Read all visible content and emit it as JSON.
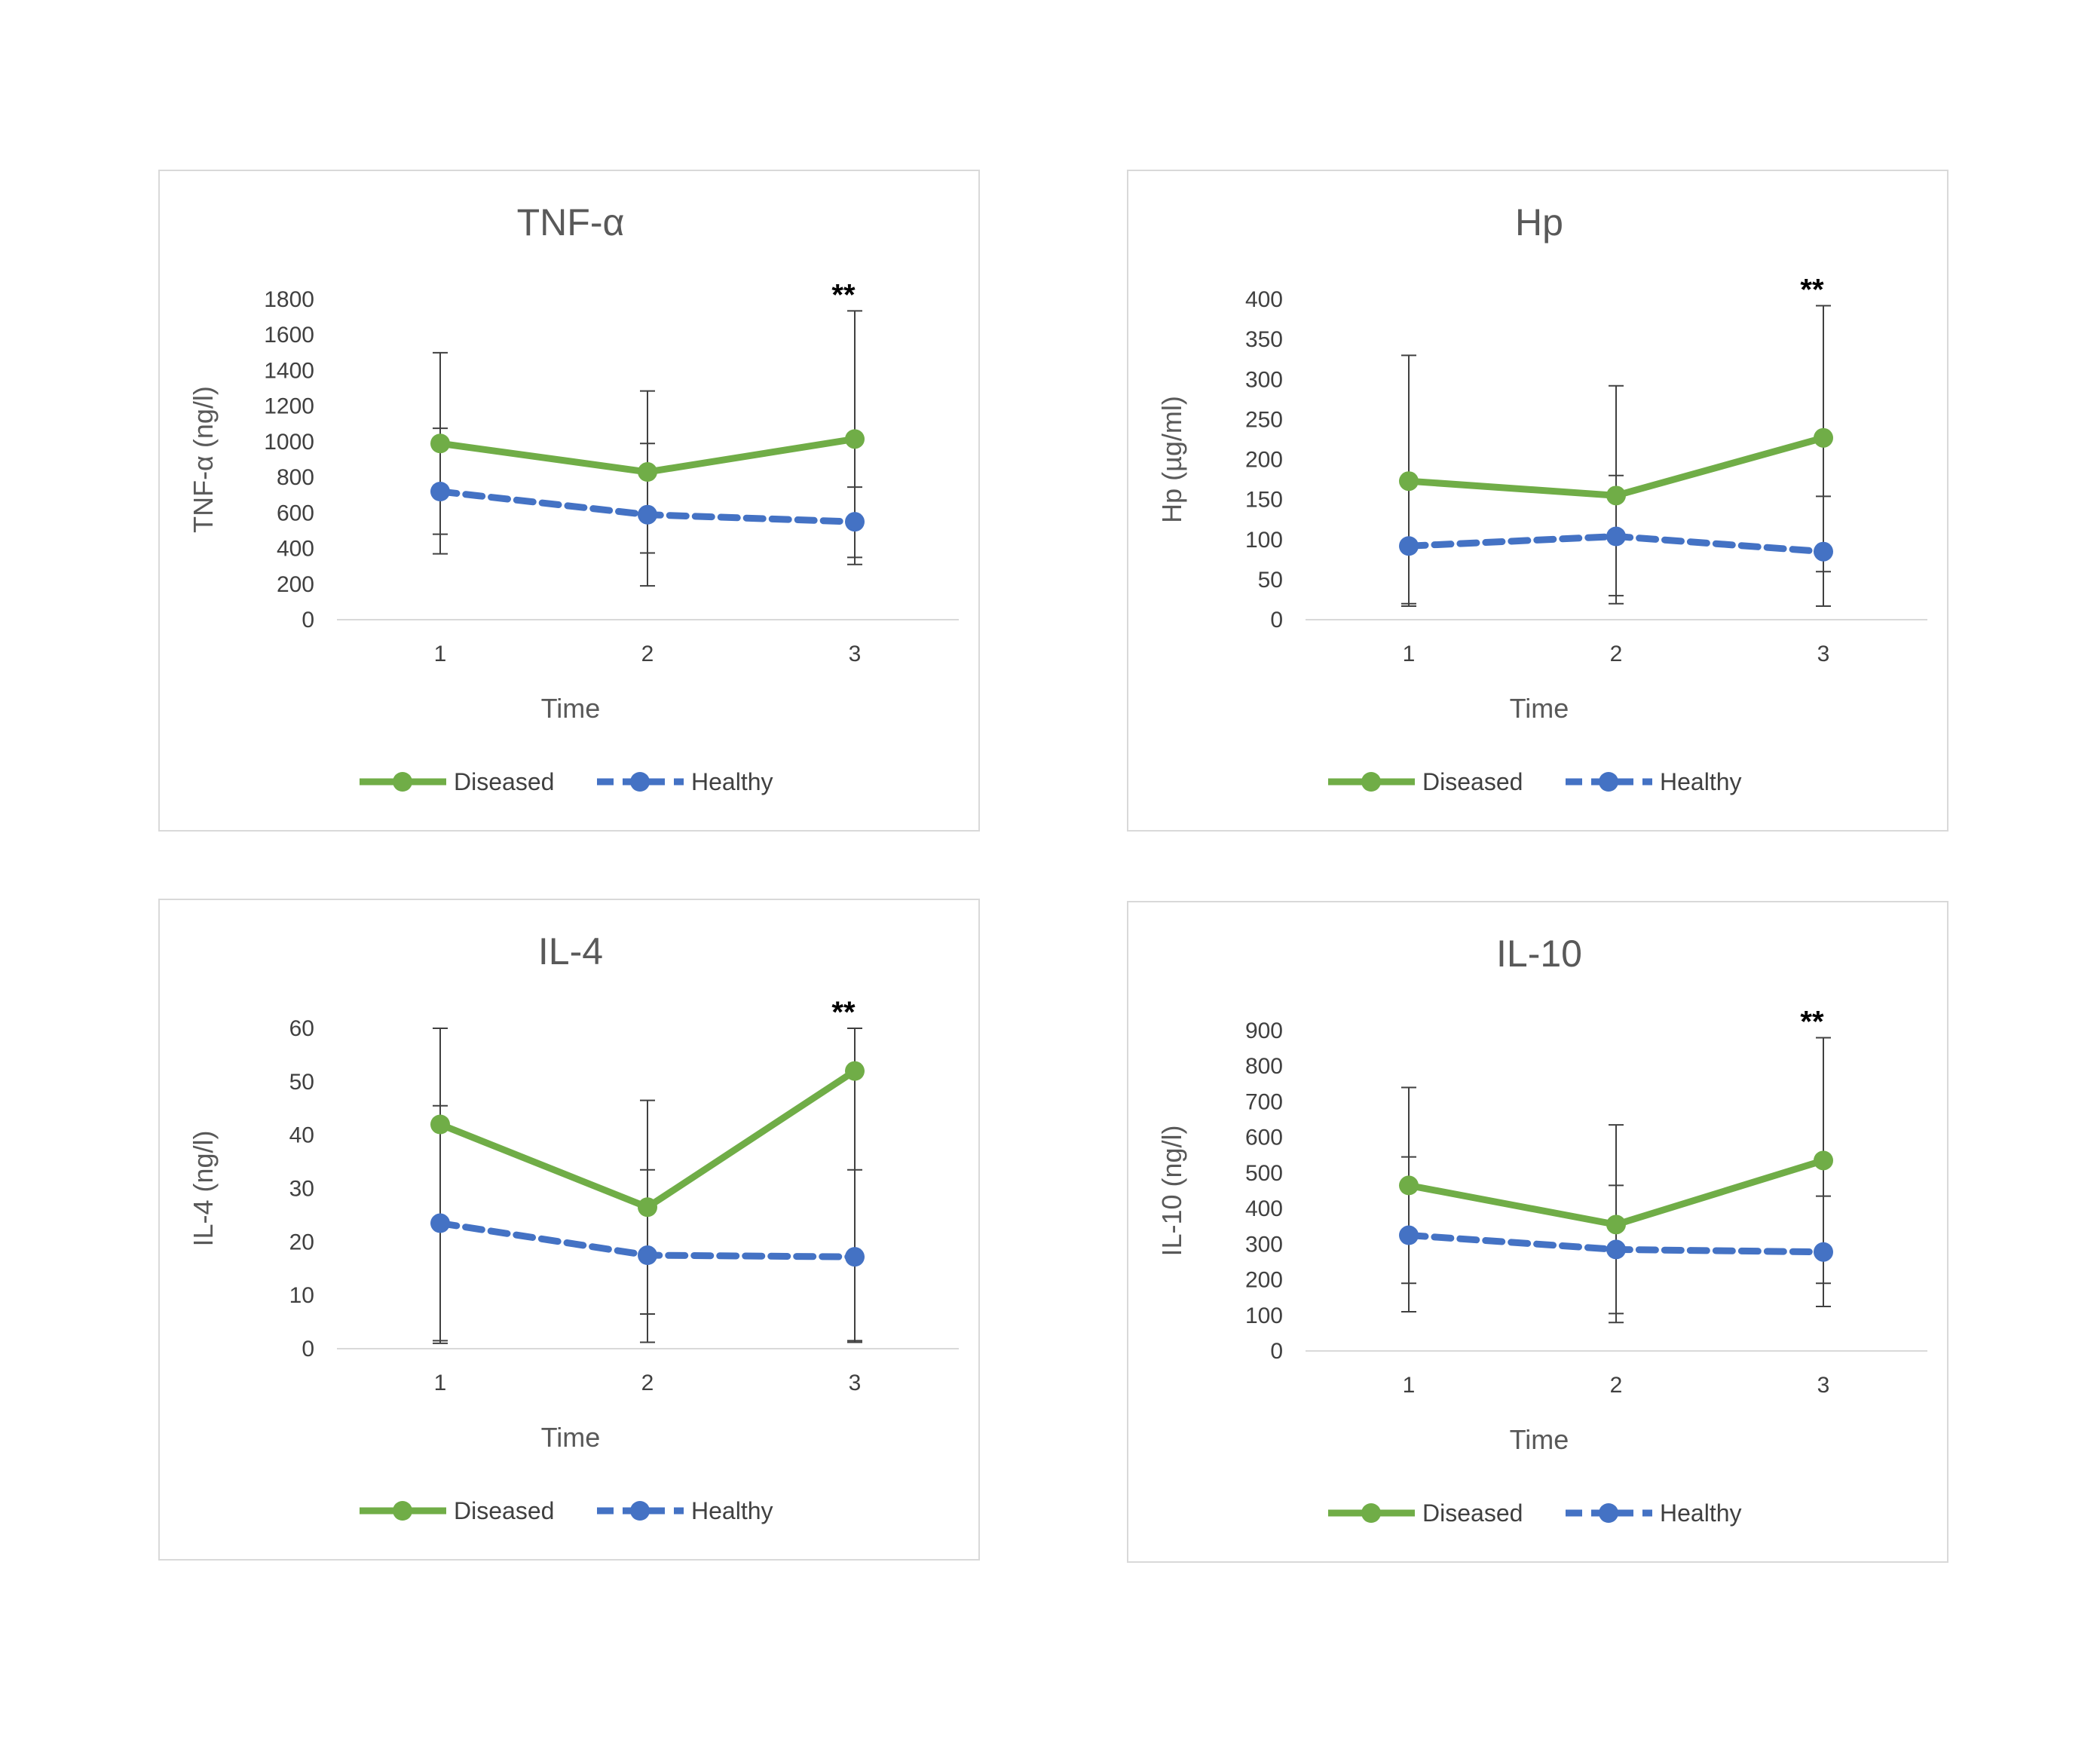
{
  "colors": {
    "diseased": "#70ad47",
    "healthy": "#4472c4",
    "error_bar": "#404040",
    "axis": "#d9d9d9"
  },
  "chart_data": [
    {
      "type": "line",
      "title": "TNF-α",
      "xlabel": "Time",
      "ylabel": "TNF-α (ng/l)",
      "categories": [
        "1",
        "2",
        "3"
      ],
      "yticks": [
        0,
        200,
        400,
        600,
        800,
        1000,
        1200,
        1400,
        1600,
        1800
      ],
      "ylim": [
        0,
        1800
      ],
      "annotation": {
        "text": "**",
        "x_index": 2
      },
      "series": [
        {
          "name": "Diseased",
          "style": "solid",
          "values": [
            990,
            830,
            1015
          ],
          "err_low": [
            480,
            375,
            350
          ],
          "err_high": [
            1500,
            1285,
            1735
          ]
        },
        {
          "name": "Healthy",
          "style": "dashed",
          "values": [
            720,
            590,
            550
          ],
          "err_low": [
            370,
            190,
            310
          ],
          "err_high": [
            1075,
            990,
            745
          ]
        }
      ]
    },
    {
      "type": "line",
      "title": "Hp",
      "xlabel": "Time",
      "ylabel": "Hp (µg/ml)",
      "categories": [
        "1",
        "2",
        "3"
      ],
      "yticks": [
        0,
        50,
        100,
        150,
        200,
        250,
        300,
        350,
        400
      ],
      "ylim": [
        0,
        400
      ],
      "annotation": {
        "text": "**",
        "x_index": 2
      },
      "series": [
        {
          "name": "Diseased",
          "style": "solid",
          "values": [
            173,
            155,
            227
          ],
          "err_low": [
            20,
            30,
            60
          ],
          "err_high": [
            330,
            292,
            392
          ]
        },
        {
          "name": "Healthy",
          "style": "dashed",
          "values": [
            92,
            104,
            85
          ],
          "err_low": [
            17,
            20,
            17
          ],
          "err_high": [
            0,
            180,
            154
          ]
        }
      ]
    },
    {
      "type": "line",
      "title": "IL-4",
      "xlabel": "Time",
      "ylabel": "IL-4 (ng/l)",
      "categories": [
        "1",
        "2",
        "3"
      ],
      "yticks": [
        0,
        10,
        20,
        30,
        40,
        50,
        60
      ],
      "ylim": [
        0,
        60
      ],
      "annotation": {
        "text": "**",
        "x_index": 2
      },
      "series": [
        {
          "name": "Diseased",
          "style": "solid",
          "values": [
            42,
            26.5,
            52
          ],
          "err_low": [
            1.5,
            6.5,
            1.5
          ],
          "err_high": [
            60,
            46.5,
            60
          ]
        },
        {
          "name": "Healthy",
          "style": "dashed",
          "values": [
            23.5,
            17.5,
            17.2
          ],
          "err_low": [
            1,
            1.2,
            1.2
          ],
          "err_high": [
            45.5,
            33.5,
            33.5
          ]
        }
      ]
    },
    {
      "type": "line",
      "title": "IL-10",
      "xlabel": "Time",
      "ylabel": "IL-10 (ng/l)",
      "categories": [
        "1",
        "2",
        "3"
      ],
      "yticks": [
        0,
        100,
        200,
        300,
        400,
        500,
        600,
        700,
        800,
        900
      ],
      "ylim": [
        0,
        900
      ],
      "annotation": {
        "text": "**",
        "x_index": 2
      },
      "series": [
        {
          "name": "Diseased",
          "style": "solid",
          "values": [
            465,
            355,
            535
          ],
          "err_low": [
            190,
            105,
            190
          ],
          "err_high": [
            740,
            635,
            880
          ]
        },
        {
          "name": "Healthy",
          "style": "dashed",
          "values": [
            325,
            285,
            278
          ],
          "err_low": [
            110,
            80,
            125
          ],
          "err_high": [
            545,
            465,
            435
          ]
        }
      ]
    }
  ]
}
